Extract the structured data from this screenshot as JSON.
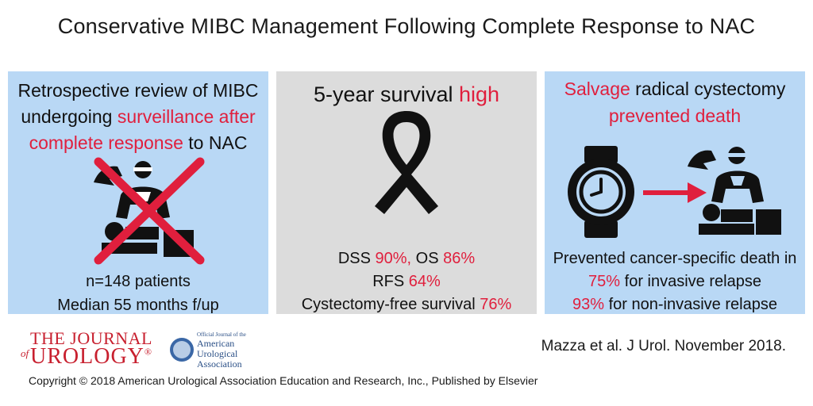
{
  "title": "Conservative MIBC Management Following Complete Response to NAC",
  "left_panel": {
    "line1": "Retrospective review of MIBC",
    "line2_pre": "undergoing ",
    "line2_hl": "surveillance after",
    "line3_hl": "complete response",
    "line3_post": " to NAC",
    "icon": "surgeon-crossed-out-icon",
    "stat1": "n=148 patients",
    "stat2": "Median 55 months f/up"
  },
  "mid_panel": {
    "heading_pre": "5-year survival ",
    "heading_hl": "high",
    "icon": "awareness-ribbon-icon",
    "dss_label": "DSS ",
    "dss_value": "90%,",
    "os_label": " OS ",
    "os_value": "86%",
    "rfs_label": "RFS ",
    "rfs_value": "64%",
    "cfs_label": "Cystectomy-free survival ",
    "cfs_value": "76%"
  },
  "right_panel": {
    "line1_hl": "Salvage",
    "line1_post": " radical cystectomy",
    "line2_hl": "prevented death",
    "icons": [
      "watch-icon",
      "arrow-right-icon",
      "surgeon-icon"
    ],
    "line3": "Prevented cancer-specific death in",
    "line4_hl": "75%",
    "line4_post": " for invasive relapse",
    "line5_hl": "93%",
    "line5_post": " for non-invasive relapse"
  },
  "footer": {
    "journal_the": "THE JOURNAL",
    "journal_of": "of",
    "journal_urology": "UROLOGY",
    "journal_reg": "®",
    "aua_official": "Official Journal of the",
    "aua_line1": "American",
    "aua_line2": "Urological",
    "aua_line3": "Association",
    "citation": "Mazza et al. J Urol. November 2018.",
    "copyright": "Copyright © 2018 American Urological Association Education and Research, Inc., Published by Elsevier"
  },
  "colors": {
    "highlight": "#e01f3d",
    "panel_blue": "#b9d8f5",
    "panel_gray": "#dcdcdc",
    "icon_dark": "#111111"
  }
}
